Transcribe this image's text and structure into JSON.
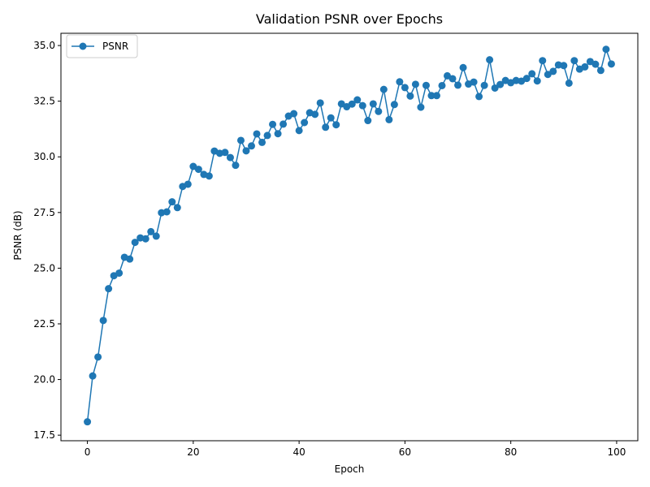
{
  "chart_data": {
    "type": "line",
    "title": "Validation PSNR over Epochs",
    "xlabel": "Epoch",
    "ylabel": "PSNR (dB)",
    "xlim": [
      -5,
      104
    ],
    "ylim": [
      17.25,
      35.55
    ],
    "xticks": [
      0,
      20,
      40,
      60,
      80,
      100
    ],
    "yticks": [
      17.5,
      20.0,
      22.5,
      25.0,
      27.5,
      30.0,
      32.5,
      35.0
    ],
    "grid": false,
    "legend_position": "top-left",
    "series": [
      {
        "name": "PSNR",
        "color": "#1f77b4",
        "marker": "circle",
        "x": [
          0,
          1,
          2,
          3,
          4,
          5,
          6,
          7,
          8,
          9,
          10,
          11,
          12,
          13,
          14,
          15,
          16,
          17,
          18,
          19,
          20,
          21,
          22,
          23,
          24,
          25,
          26,
          27,
          28,
          29,
          30,
          31,
          32,
          33,
          34,
          35,
          36,
          37,
          38,
          39,
          40,
          41,
          42,
          43,
          44,
          45,
          46,
          47,
          48,
          49,
          50,
          51,
          52,
          53,
          54,
          55,
          56,
          57,
          58,
          59,
          60,
          61,
          62,
          63,
          64,
          65,
          66,
          67,
          68,
          69,
          70,
          71,
          72,
          73,
          74,
          75,
          76,
          77,
          78,
          79,
          80,
          81,
          82,
          83,
          84,
          85,
          86,
          87,
          88,
          89,
          90,
          91,
          92,
          93,
          94,
          95,
          96,
          97,
          98,
          99
        ],
        "values": [
          18.1,
          20.16,
          21.01,
          22.65,
          24.08,
          24.66,
          24.78,
          25.49,
          25.41,
          26.16,
          26.36,
          26.32,
          26.64,
          26.44,
          27.49,
          27.53,
          27.98,
          27.72,
          28.67,
          28.77,
          29.57,
          29.44,
          29.21,
          29.14,
          30.26,
          30.16,
          30.2,
          29.97,
          29.62,
          30.74,
          30.27,
          30.49,
          31.03,
          30.65,
          30.96,
          31.46,
          31.04,
          31.47,
          31.83,
          31.94,
          31.18,
          31.54,
          31.98,
          31.91,
          32.42,
          31.33,
          31.75,
          31.44,
          32.38,
          32.25,
          32.37,
          32.56,
          32.3,
          31.63,
          32.38,
          32.04,
          33.03,
          31.67,
          32.35,
          33.37,
          33.11,
          32.73,
          33.26,
          32.23,
          33.21,
          32.75,
          32.75,
          33.2,
          33.64,
          33.51,
          33.22,
          34.01,
          33.27,
          33.36,
          32.71,
          33.21,
          34.36,
          33.09,
          33.25,
          33.43,
          33.33,
          33.43,
          33.4,
          33.52,
          33.73,
          33.41,
          34.32,
          33.7,
          33.84,
          34.13,
          34.1,
          33.31,
          34.32,
          33.94,
          34.04,
          34.28,
          34.16,
          33.88,
          34.83,
          34.17
        ]
      }
    ]
  }
}
